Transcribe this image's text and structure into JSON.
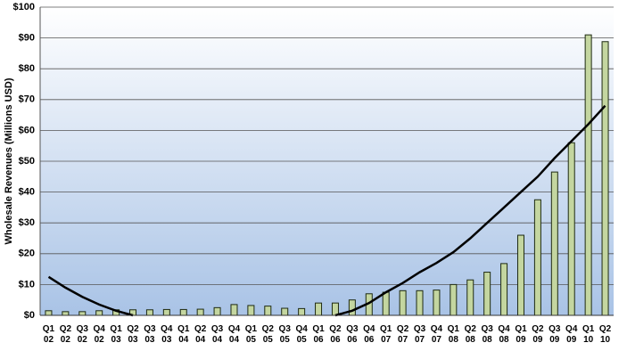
{
  "chart_data": {
    "type": "bar",
    "y_label": "Wholesale Revenues (Millions USD)",
    "categories": [
      "Q1 02",
      "Q2 02",
      "Q3 02",
      "Q4 02",
      "Q1 03",
      "Q2 03",
      "Q3 03",
      "Q4 03",
      "Q1 04",
      "Q2 04",
      "Q3 04",
      "Q4 04",
      "Q1 05",
      "Q2 05",
      "Q3 05",
      "Q4 05",
      "Q1 06",
      "Q2 06",
      "Q3 06",
      "Q4 06",
      "Q1 07",
      "Q2 07",
      "Q3 07",
      "Q4 07",
      "Q1 08",
      "Q2 08",
      "Q3 08",
      "Q4 08",
      "Q1 09",
      "Q2 09",
      "Q3 09",
      "Q4 09",
      "Q1 10",
      "Q2 10"
    ],
    "values": [
      1.5,
      1.2,
      1.2,
      1.5,
      1.8,
      1.8,
      1.8,
      1.9,
      1.9,
      2.0,
      2.5,
      3.5,
      3.2,
      3.0,
      2.3,
      2.2,
      4.0,
      4.0,
      5.0,
      7.0,
      7.5,
      8.0,
      8.0,
      8.2,
      10.0,
      11.5,
      14.0,
      16.8,
      26.0,
      37.5,
      46.5,
      56.0,
      91.0,
      88.8
    ],
    "color": "#c4d6a0",
    "trendline": {
      "color": "#000000",
      "values": [
        12.5,
        9,
        6,
        3.5,
        1.5,
        0,
        null,
        null,
        null,
        null,
        null,
        null,
        null,
        null,
        null,
        null,
        null,
        0,
        1.5,
        4,
        7.5,
        10.5,
        14,
        17,
        20.5,
        25,
        30,
        35,
        40,
        45,
        51,
        56.5,
        62,
        68
      ]
    },
    "ylim": [
      0,
      100
    ],
    "yticks": [
      {
        "value": 0,
        "label": "$0"
      },
      {
        "value": 10,
        "label": "$10"
      },
      {
        "value": 20,
        "label": "$20"
      },
      {
        "value": 30,
        "label": "$30"
      },
      {
        "value": 40,
        "label": "$40"
      },
      {
        "value": 50,
        "label": "$50"
      },
      {
        "value": 60,
        "label": "$60"
      },
      {
        "value": 70,
        "label": "$70"
      },
      {
        "value": 80,
        "label": "$80"
      },
      {
        "value": 90,
        "label": "$90"
      },
      {
        "value": 100,
        "label": "$100"
      }
    ],
    "grid": true
  }
}
